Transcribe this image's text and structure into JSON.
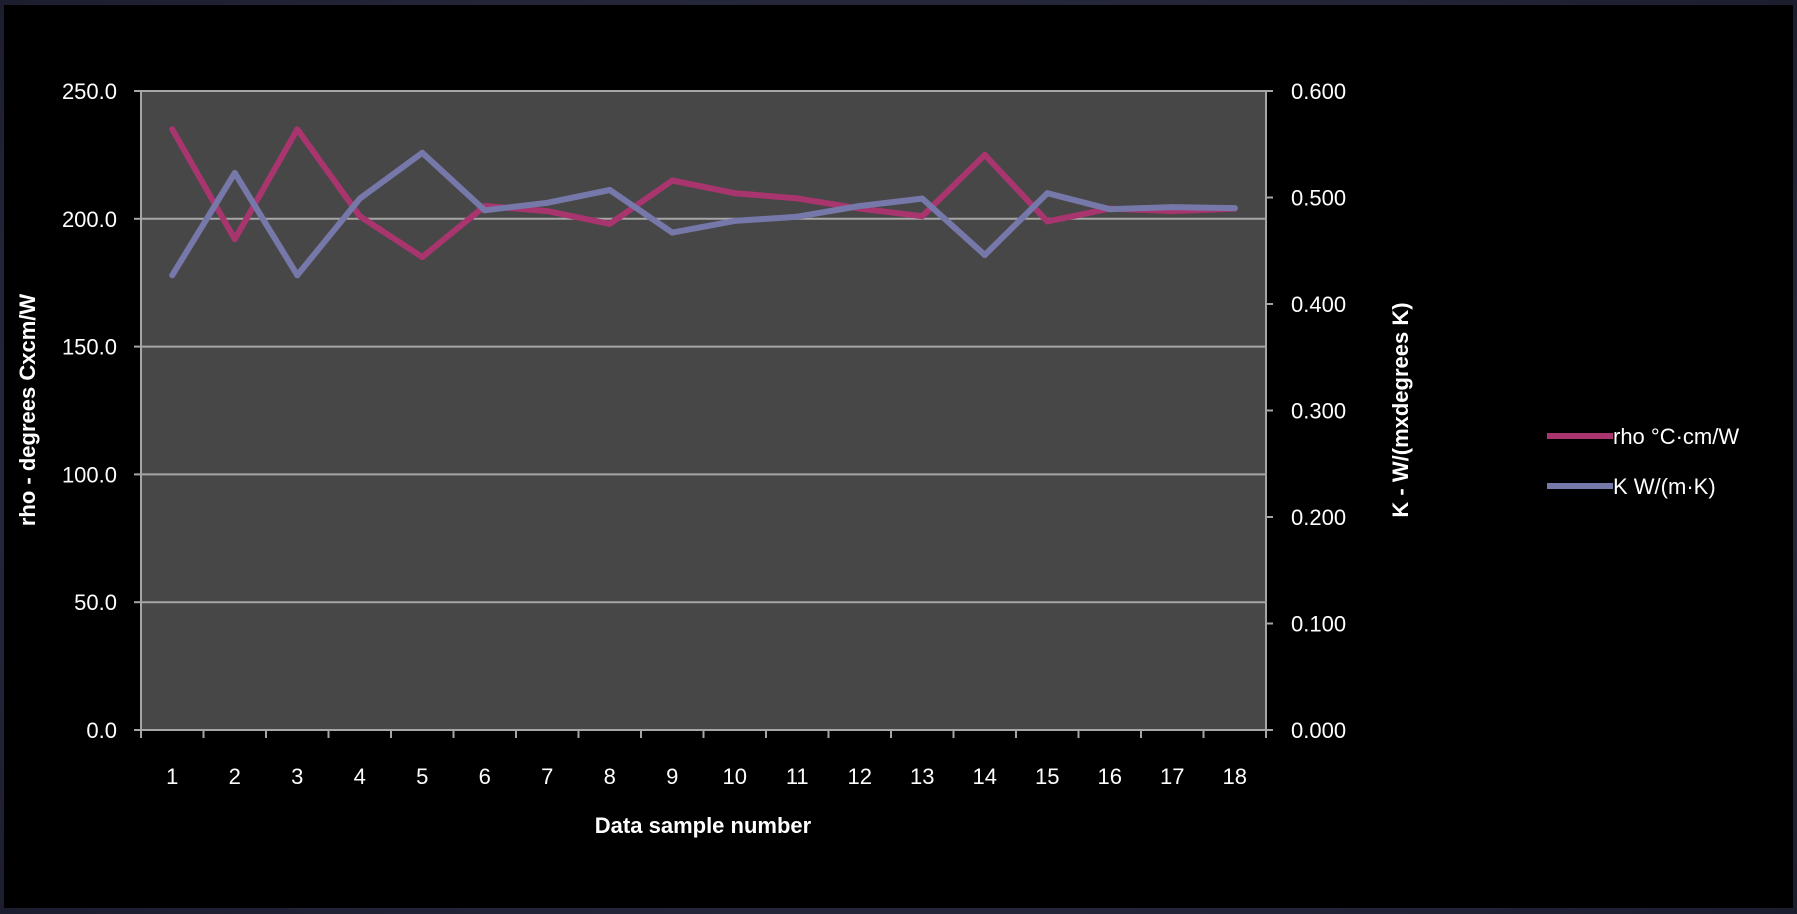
{
  "chart_data": {
    "type": "line",
    "title": "",
    "xlabel": "Data sample number",
    "ylabel": "rho - degrees Cxcm/W",
    "y2label": "K - W/(mxdegrees K)",
    "categories": [
      "1",
      "2",
      "3",
      "4",
      "5",
      "6",
      "7",
      "8",
      "9",
      "10",
      "11",
      "12",
      "13",
      "14",
      "15",
      "16",
      "17",
      "18"
    ],
    "ylim": [
      0,
      250
    ],
    "yticks": [
      "0.0",
      "50.0",
      "100.0",
      "150.0",
      "200.0",
      "250.0"
    ],
    "y2lim": [
      0,
      0.6
    ],
    "y2ticks": [
      "0.000",
      "0.100",
      "0.200",
      "0.300",
      "0.400",
      "0.500",
      "0.600"
    ],
    "grid": true,
    "legend_position": "right",
    "series": [
      {
        "name": "rho °C·cm/W",
        "axis": "left",
        "color": "#a8356e",
        "values": [
          235,
          192,
          235,
          201,
          185,
          205,
          203,
          198,
          215,
          210,
          208,
          204,
          201,
          225,
          199,
          204,
          203,
          204
        ]
      },
      {
        "name": "K W/(m·K)",
        "axis": "right",
        "color": "#7778aa",
        "values": [
          0.427,
          0.523,
          0.427,
          0.499,
          0.542,
          0.488,
          0.495,
          0.507,
          0.467,
          0.478,
          0.482,
          0.492,
          0.499,
          0.446,
          0.504,
          0.489,
          0.491,
          0.49
        ]
      }
    ]
  }
}
